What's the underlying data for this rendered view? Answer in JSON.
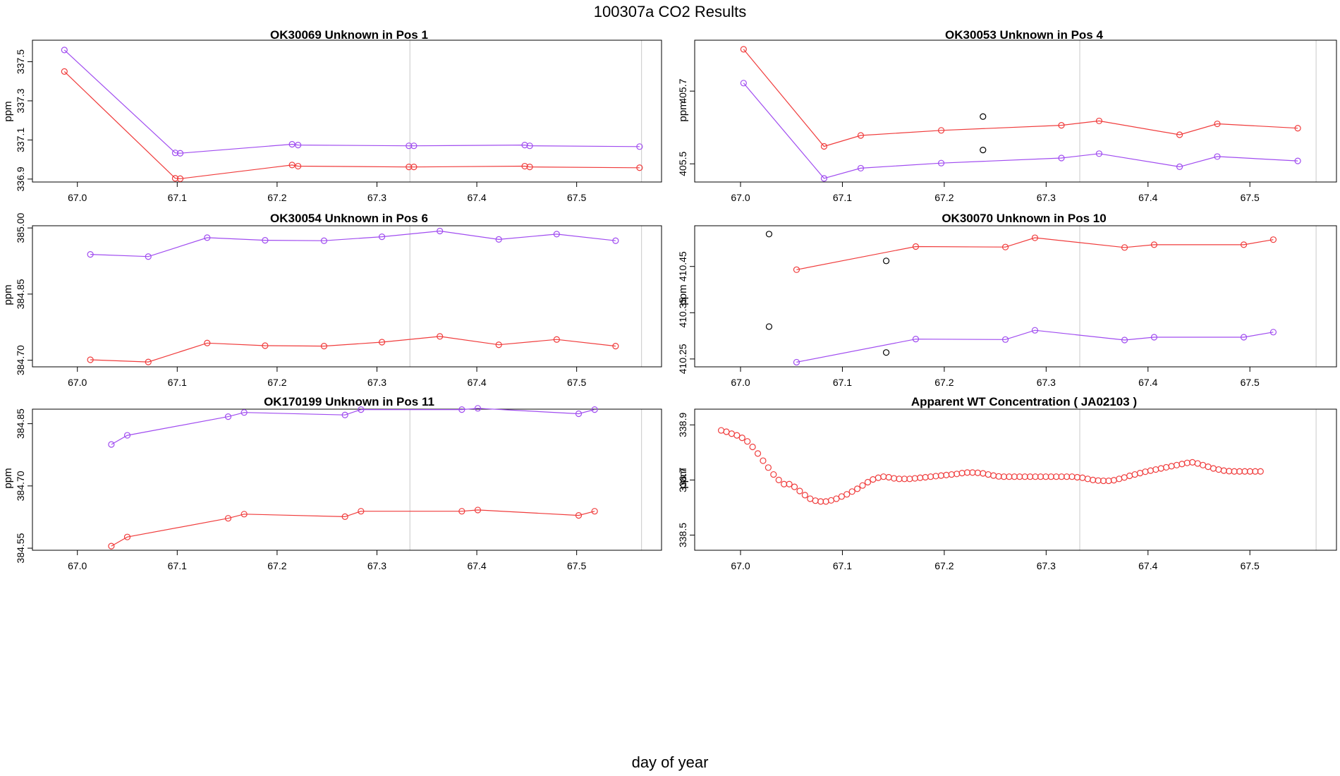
{
  "figure": {
    "title": "100307a  CO2 Results",
    "xlabel": "day of year"
  },
  "colors": {
    "purple": "#a04cf0",
    "red": "#f03c3c",
    "black": "#000000",
    "axis": "#000000",
    "vline": "#c8c8c8"
  },
  "chart_data": [
    {
      "type": "line",
      "title": "OK30069    Unknown in Pos 1",
      "ylabel": "ppm",
      "xlim": [
        66.955,
        67.585
      ],
      "ylim": [
        336.885,
        337.61
      ],
      "xticks": [
        67.0,
        67.1,
        67.2,
        67.3,
        67.4,
        67.5
      ],
      "xtick_labels": [
        "67.0",
        "67.1",
        "67.2",
        "67.3",
        "67.4",
        "67.5"
      ],
      "yticks": [
        336.9,
        337.1,
        337.3,
        337.5
      ],
      "ytick_labels": [
        "336.9",
        "337.1",
        "337.3",
        "337.5"
      ],
      "vlines": [
        67.333,
        67.565
      ],
      "series": [
        {
          "name": "purple",
          "color": "purple",
          "line": true,
          "x": [
            66.987,
            67.098,
            67.103,
            67.215,
            67.221,
            67.332,
            67.337,
            67.448,
            67.453,
            67.563
          ],
          "y": [
            337.56,
            337.034,
            337.032,
            337.078,
            337.074,
            337.07,
            337.07,
            337.074,
            337.07,
            337.066
          ]
        },
        {
          "name": "red",
          "color": "red",
          "line": true,
          "x": [
            66.987,
            67.098,
            67.103,
            67.215,
            67.221,
            67.332,
            67.337,
            67.448,
            67.453,
            67.563
          ],
          "y": [
            337.45,
            336.904,
            336.902,
            336.972,
            336.966,
            336.962,
            336.962,
            336.966,
            336.962,
            336.958
          ]
        }
      ]
    },
    {
      "type": "line",
      "title": "OK30053    Unknown in Pos 4",
      "ylabel": "ppm",
      "xlim": [
        66.955,
        67.585
      ],
      "ylim": [
        405.45,
        405.84
      ],
      "xticks": [
        67.0,
        67.1,
        67.2,
        67.3,
        67.4,
        67.5
      ],
      "xtick_labels": [
        "67.0",
        "67.1",
        "67.2",
        "67.3",
        "67.4",
        "67.5"
      ],
      "yticks": [
        405.5,
        405.7
      ],
      "ytick_labels": [
        "405.5",
        "405.7"
      ],
      "vlines": [
        67.333,
        67.565
      ],
      "series": [
        {
          "name": "red",
          "color": "red",
          "line": true,
          "x": [
            67.003,
            67.082,
            67.118,
            67.197,
            67.315,
            67.352,
            67.431,
            67.468,
            67.547
          ],
          "y": [
            405.815,
            405.548,
            405.578,
            405.592,
            405.606,
            405.618,
            405.58,
            405.61,
            405.598
          ]
        },
        {
          "name": "purple",
          "color": "purple",
          "line": true,
          "x": [
            67.003,
            67.082,
            67.118,
            67.197,
            67.315,
            67.352,
            67.431,
            67.468,
            67.547
          ],
          "y": [
            405.722,
            405.46,
            405.488,
            405.502,
            405.516,
            405.528,
            405.492,
            405.52,
            405.508
          ]
        },
        {
          "name": "black",
          "color": "black",
          "line": false,
          "x": [
            67.238,
            67.238
          ],
          "y": [
            405.63,
            405.538
          ]
        }
      ]
    },
    {
      "type": "line",
      "title": "OK30054    Unknown in Pos 6",
      "ylabel": "ppm",
      "xlim": [
        66.955,
        67.585
      ],
      "ylim": [
        384.685,
        385.005
      ],
      "xticks": [
        67.0,
        67.1,
        67.2,
        67.3,
        67.4,
        67.5
      ],
      "xtick_labels": [
        "67.0",
        "67.1",
        "67.2",
        "67.3",
        "67.4",
        "67.5"
      ],
      "yticks": [
        384.7,
        384.85,
        385.0
      ],
      "ytick_labels": [
        "384.70",
        "384.85",
        "385.00"
      ],
      "vlines": [
        67.333,
        67.565
      ],
      "series": [
        {
          "name": "purple",
          "color": "purple",
          "line": true,
          "x": [
            67.013,
            67.071,
            67.13,
            67.188,
            67.247,
            67.305,
            67.363,
            67.422,
            67.48,
            67.539
          ],
          "y": [
            384.94,
            384.935,
            384.978,
            384.972,
            384.971,
            384.98,
            384.993,
            384.974,
            384.986,
            384.971
          ]
        },
        {
          "name": "red",
          "color": "red",
          "line": true,
          "x": [
            67.013,
            67.071,
            67.13,
            67.188,
            67.247,
            67.305,
            67.363,
            67.422,
            67.48,
            67.539
          ],
          "y": [
            384.701,
            384.696,
            384.739,
            384.733,
            384.732,
            384.741,
            384.754,
            384.735,
            384.747,
            384.732
          ]
        }
      ]
    },
    {
      "type": "line",
      "title": "OK30070    Unknown in Pos 10",
      "ylabel": "ppm",
      "xlim": [
        66.955,
        67.585
      ],
      "ylim": [
        410.233,
        410.538
      ],
      "xticks": [
        67.0,
        67.1,
        67.2,
        67.3,
        67.4,
        67.5
      ],
      "xtick_labels": [
        "67.0",
        "67.1",
        "67.2",
        "67.3",
        "67.4",
        "67.5"
      ],
      "yticks": [
        410.25,
        410.35,
        410.45
      ],
      "ytick_labels": [
        "410.25",
        "410.35",
        "410.45"
      ],
      "vlines": [
        67.333,
        67.565
      ],
      "series": [
        {
          "name": "red",
          "color": "red",
          "line": true,
          "x": [
            67.055,
            67.172,
            67.26,
            67.289,
            67.377,
            67.406,
            67.494,
            67.523
          ],
          "y": [
            410.443,
            410.493,
            410.492,
            410.512,
            410.491,
            410.497,
            410.497,
            410.508
          ]
        },
        {
          "name": "purple",
          "color": "purple",
          "line": true,
          "x": [
            67.055,
            67.172,
            67.26,
            67.289,
            67.377,
            67.406,
            67.494,
            67.523
          ],
          "y": [
            410.243,
            410.293,
            410.292,
            410.312,
            410.291,
            410.297,
            410.297,
            410.308
          ]
        },
        {
          "name": "black",
          "color": "black",
          "line": false,
          "x": [
            67.028,
            67.028,
            67.143,
            67.143
          ],
          "y": [
            410.52,
            410.32,
            410.462,
            410.264
          ]
        }
      ]
    },
    {
      "type": "line",
      "title": "OK170199    Unknown in Pos 11",
      "ylabel": "ppm",
      "xlim": [
        66.955,
        67.585
      ],
      "ylim": [
        384.545,
        384.885
      ],
      "xticks": [
        67.0,
        67.1,
        67.2,
        67.3,
        67.4,
        67.5
      ],
      "xtick_labels": [
        "67.0",
        "67.1",
        "67.2",
        "67.3",
        "67.4",
        "67.5"
      ],
      "yticks": [
        384.55,
        384.7,
        384.85
      ],
      "ytick_labels": [
        "384.55",
        "384.70",
        "384.85"
      ],
      "vlines": [
        67.333,
        67.565
      ],
      "series": [
        {
          "name": "purple",
          "color": "purple",
          "line": true,
          "x": [
            67.034,
            67.05,
            67.151,
            67.167,
            67.268,
            67.284,
            67.385,
            67.401,
            67.502,
            67.518
          ],
          "y": [
            384.8,
            384.822,
            384.867,
            384.877,
            384.871,
            384.884,
            384.884,
            384.887,
            384.874,
            384.884
          ]
        },
        {
          "name": "red",
          "color": "red",
          "line": true,
          "x": [
            67.034,
            67.05,
            67.151,
            67.167,
            67.268,
            67.284,
            67.385,
            67.401,
            67.502,
            67.518
          ],
          "y": [
            384.555,
            384.577,
            384.622,
            384.632,
            384.626,
            384.639,
            384.639,
            384.642,
            384.629,
            384.639
          ]
        }
      ]
    },
    {
      "type": "scatter",
      "title": "Apparent WT Concentration ( JA02103 )",
      "ylabel": "ppm",
      "xlim": [
        66.955,
        67.585
      ],
      "ylim": [
        338.445,
        338.957
      ],
      "xticks": [
        67.0,
        67.1,
        67.2,
        67.3,
        67.4,
        67.5
      ],
      "xtick_labels": [
        "67.0",
        "67.1",
        "67.2",
        "67.3",
        "67.4",
        "67.5"
      ],
      "yticks": [
        338.5,
        338.7,
        338.9
      ],
      "ytick_labels": [
        "338.5",
        "338.7",
        "338.9"
      ],
      "vlines": [
        67.333,
        67.565
      ],
      "series": [
        {
          "name": "red",
          "color": "red",
          "line": false,
          "open_points": true,
          "x_start": 66.981,
          "x_step": 0.00514,
          "y": [
            338.88,
            338.875,
            338.868,
            338.862,
            338.853,
            338.84,
            338.82,
            338.796,
            338.77,
            338.745,
            338.72,
            338.7,
            338.685,
            338.685,
            338.675,
            338.66,
            338.645,
            338.632,
            338.625,
            338.622,
            338.622,
            338.626,
            338.632,
            338.64,
            338.648,
            338.658,
            338.668,
            338.68,
            338.692,
            338.702,
            338.708,
            338.712,
            338.71,
            338.706,
            338.704,
            338.704,
            338.704,
            338.706,
            338.708,
            338.71,
            338.712,
            338.714,
            338.716,
            338.718,
            338.72,
            338.722,
            338.725,
            338.727,
            338.727,
            338.726,
            338.724,
            338.72,
            338.716,
            338.713,
            338.712,
            338.712,
            338.712,
            338.712,
            338.712,
            338.712,
            338.712,
            338.712,
            338.712,
            338.712,
            338.712,
            338.712,
            338.712,
            338.712,
            338.71,
            338.708,
            338.704,
            338.7,
            338.698,
            338.697,
            338.697,
            338.699,
            338.704,
            338.709,
            338.715,
            338.72,
            338.725,
            338.73,
            338.734,
            338.738,
            338.742,
            338.746,
            338.75,
            338.754,
            338.758,
            338.762,
            338.764,
            338.76,
            338.754,
            338.748,
            338.742,
            338.738,
            338.734,
            338.732,
            338.731,
            338.731,
            338.731,
            338.731,
            338.731,
            338.731
          ]
        }
      ]
    }
  ]
}
